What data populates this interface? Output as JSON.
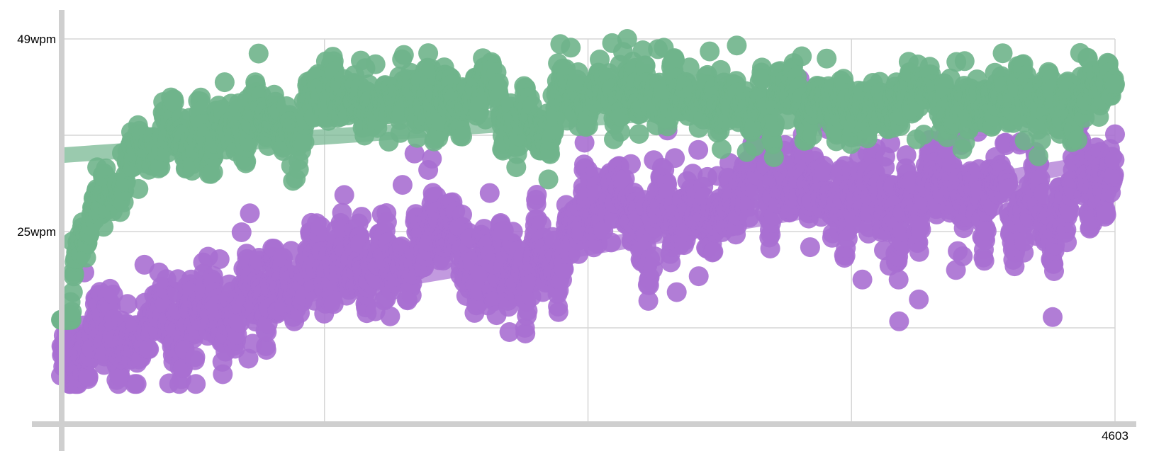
{
  "chart_data": {
    "type": "scatter",
    "title": "",
    "xlabel": "",
    "ylabel": "",
    "xlim": [
      0,
      4603
    ],
    "ylim": [
      1,
      49
    ],
    "x_tick_values": [
      0,
      1150.75,
      2301.5,
      3452.25,
      4603
    ],
    "x_tick_labels": [
      "",
      "",
      "",
      "",
      "4603"
    ],
    "y_tick_values": [
      49,
      37,
      25,
      13
    ],
    "y_tick_labels": [
      "49wpm",
      "",
      "25wpm",
      ""
    ],
    "grid": true,
    "legend": "none",
    "series": [
      {
        "color": "#6fb48b",
        "trend": [
          [
            0,
            34.5
          ],
          [
            4603,
            43.7
          ]
        ],
        "anchors": [
          [
            0,
            13.5
          ],
          [
            30,
            15
          ],
          [
            60,
            20
          ],
          [
            100,
            23
          ],
          [
            140,
            28
          ],
          [
            180,
            27
          ],
          [
            250,
            31
          ],
          [
            330,
            33
          ],
          [
            420,
            35
          ],
          [
            520,
            37
          ],
          [
            620,
            37.5
          ],
          [
            720,
            37
          ],
          [
            850,
            37.5
          ],
          [
            1000,
            39
          ],
          [
            1150,
            40.5
          ],
          [
            1300,
            40
          ],
          [
            1500,
            41
          ],
          [
            1700,
            41.5
          ],
          [
            1900,
            41.5
          ],
          [
            2100,
            41
          ],
          [
            2300,
            41.5
          ],
          [
            2500,
            41
          ],
          [
            2700,
            41
          ],
          [
            2900,
            41.5
          ],
          [
            3100,
            41
          ],
          [
            3300,
            41.5
          ],
          [
            3500,
            40.5
          ],
          [
            3700,
            40.5
          ],
          [
            3900,
            41
          ],
          [
            4100,
            41
          ],
          [
            4300,
            41.5
          ],
          [
            4500,
            41.5
          ],
          [
            4603,
            42
          ]
        ],
        "jitter": 4.2,
        "range": [
          14,
          49
        ]
      },
      {
        "color": "#a86fd2",
        "trend": [
          [
            0,
            12
          ],
          [
            4603,
            34
          ]
        ],
        "anchors": [
          [
            0,
            7
          ],
          [
            100,
            8
          ],
          [
            200,
            11
          ],
          [
            300,
            12
          ],
          [
            400,
            13
          ],
          [
            500,
            14
          ],
          [
            600,
            14
          ],
          [
            700,
            15
          ],
          [
            800,
            16
          ],
          [
            900,
            18
          ],
          [
            1000,
            20
          ],
          [
            1150,
            22
          ],
          [
            1300,
            20
          ],
          [
            1500,
            20
          ],
          [
            1700,
            20
          ],
          [
            1900,
            21
          ],
          [
            2100,
            21
          ],
          [
            2200,
            24
          ],
          [
            2300,
            27
          ],
          [
            2500,
            27
          ],
          [
            2700,
            29
          ],
          [
            2900,
            30
          ],
          [
            3100,
            30
          ],
          [
            3300,
            29
          ],
          [
            3500,
            29
          ],
          [
            3700,
            29
          ],
          [
            3900,
            29
          ],
          [
            4100,
            28
          ],
          [
            4300,
            30
          ],
          [
            4500,
            33
          ],
          [
            4603,
            30
          ]
        ],
        "jitter": 6,
        "range": [
          6,
          49
        ]
      }
    ]
  }
}
